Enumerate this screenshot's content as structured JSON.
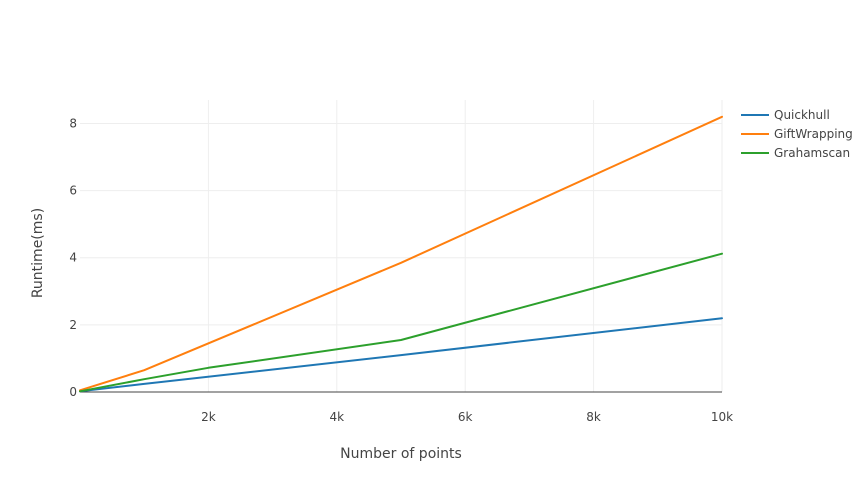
{
  "chart_data": {
    "type": "line",
    "title": "",
    "xlabel": "Number of points",
    "ylabel": "Runtime(ms)",
    "xlim": [
      0,
      10000
    ],
    "ylim": [
      0,
      8.7
    ],
    "grid": true,
    "legend_position": "top-right",
    "x_ticks": [
      {
        "value": 2000,
        "label": "2k"
      },
      {
        "value": 4000,
        "label": "4k"
      },
      {
        "value": 6000,
        "label": "6k"
      },
      {
        "value": 8000,
        "label": "8k"
      },
      {
        "value": 10000,
        "label": "10k"
      }
    ],
    "y_ticks": [
      {
        "value": 0,
        "label": "0"
      },
      {
        "value": 2,
        "label": "2"
      },
      {
        "value": 4,
        "label": "4"
      },
      {
        "value": 6,
        "label": "6"
      },
      {
        "value": 8,
        "label": "8"
      }
    ],
    "series": [
      {
        "name": "Quickhull",
        "color": "#1f77b4",
        "points": [
          [
            0,
            0.02
          ],
          [
            1000,
            0.24
          ],
          [
            5000,
            1.1
          ],
          [
            10000,
            2.2
          ]
        ]
      },
      {
        "name": "GiftWrapping",
        "color": "#ff7f0e",
        "points": [
          [
            0,
            0.05
          ],
          [
            1000,
            0.65
          ],
          [
            5000,
            3.85
          ],
          [
            10000,
            8.2
          ]
        ]
      },
      {
        "name": "Grahamscan",
        "color": "#2ca02c",
        "points": [
          [
            0,
            0.02
          ],
          [
            1000,
            0.38
          ],
          [
            2000,
            0.72
          ],
          [
            5000,
            1.55
          ],
          [
            10000,
            4.12
          ]
        ]
      }
    ]
  }
}
